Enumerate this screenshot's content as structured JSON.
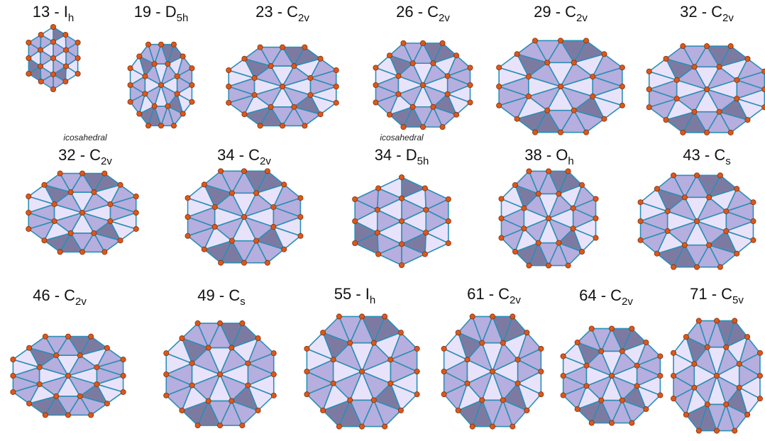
{
  "style": {
    "face_light": "#e8e3fb",
    "face_mid": "#b6aede",
    "face_dark": "#7d7aa1",
    "edge": "#2b8fb6",
    "atom": "#d9591c"
  },
  "clusters": [
    {
      "id": "c13",
      "size": "13",
      "sep": " - ",
      "group": "I",
      "sub": "h",
      "note": ""
    },
    {
      "id": "c19",
      "size": "19",
      "sep": " - ",
      "group": "D",
      "sub": "5h",
      "note": ""
    },
    {
      "id": "c23",
      "size": "23",
      "sep": " - ",
      "group": "C",
      "sub": "2v",
      "note": ""
    },
    {
      "id": "c26",
      "size": "26",
      "sep": " - ",
      "group": "C",
      "sub": "2v",
      "note": ""
    },
    {
      "id": "c29",
      "size": "29",
      "sep": " - ",
      "group": "C",
      "sub": "2v",
      "note": ""
    },
    {
      "id": "c32",
      "size": "32",
      "sep": " - ",
      "group": "C",
      "sub": "2v",
      "note": ""
    },
    {
      "id": "c32i",
      "size": "32",
      "sep": " - ",
      "group": "C",
      "sub": "2v",
      "note": "icosahedral"
    },
    {
      "id": "c34",
      "size": "34",
      "sep": " - ",
      "group": "C",
      "sub": "2v",
      "note": ""
    },
    {
      "id": "c34i",
      "size": "34",
      "sep": " - ",
      "group": "D",
      "sub": "5h",
      "note": "icosahedral"
    },
    {
      "id": "c38",
      "size": "38",
      "sep": " - ",
      "group": "O",
      "sub": "h",
      "note": ""
    },
    {
      "id": "c43",
      "size": "43",
      "sep": " - ",
      "group": "C",
      "sub": "s",
      "note": ""
    },
    {
      "id": "c46",
      "size": "46",
      "sep": " - ",
      "group": "C",
      "sub": "2v",
      "note": ""
    },
    {
      "id": "c49",
      "size": "49",
      "sep": " - ",
      "group": "C",
      "sub": "s",
      "note": ""
    },
    {
      "id": "c55",
      "size": "55",
      "sep": " - ",
      "group": "I",
      "sub": "h",
      "note": ""
    },
    {
      "id": "c61",
      "size": "61",
      "sep": " - ",
      "group": "C",
      "sub": "2v",
      "note": ""
    },
    {
      "id": "c64",
      "size": "64",
      "sep": " - ",
      "group": "C",
      "sub": "2v",
      "note": ""
    },
    {
      "id": "c71",
      "size": "71",
      "sep": " - ",
      "group": "C",
      "sub": "5v",
      "note": ""
    }
  ]
}
